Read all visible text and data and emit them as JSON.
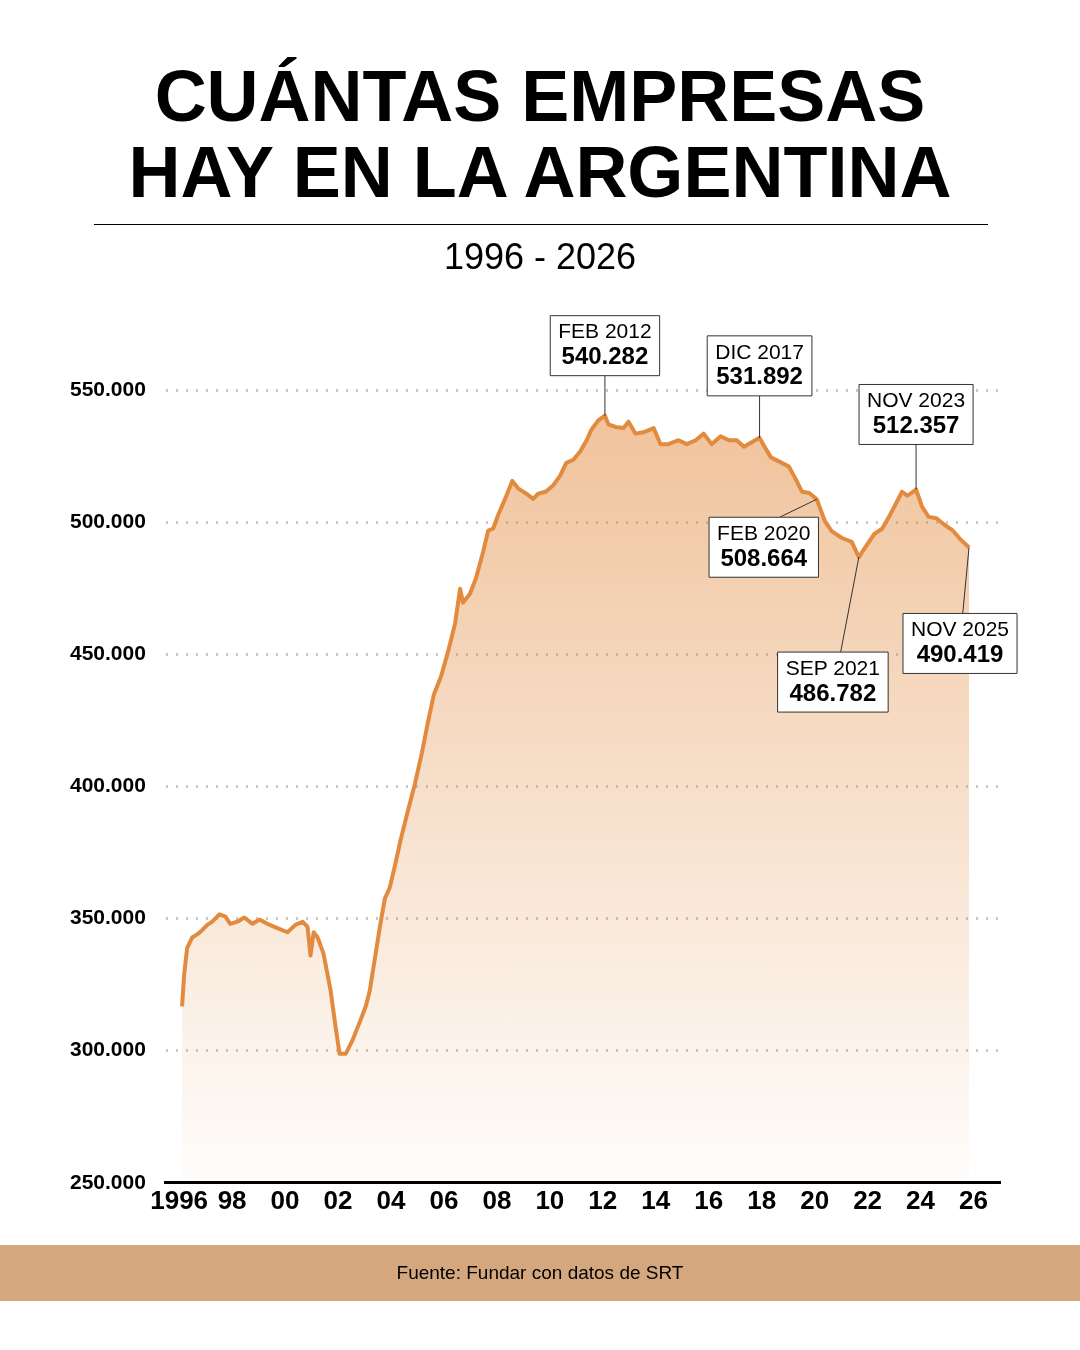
{
  "chart_data": {
    "type": "area",
    "title": "CUÁNTAS EMPRESAS HAY EN LA ARGENTINA",
    "subtitle": "1996 - 2026",
    "x": [
      1996.11,
      1996.19,
      1996.3,
      1996.49,
      1996.68,
      1996.87,
      1997.06,
      1997.25,
      1997.52,
      1997.74,
      1997.93,
      1998.2,
      1998.46,
      1998.77,
      1999.03,
      1999.33,
      1999.71,
      2000.09,
      2000.39,
      2000.66,
      2000.85,
      2000.96,
      2001.08,
      2001.23,
      2001.45,
      2001.72,
      2001.91,
      2002.06,
      2002.29,
      2002.55,
      2002.82,
      2003.05,
      2003.2,
      2003.39,
      2003.58,
      2003.77,
      2003.95,
      2004.14,
      2004.37,
      2004.64,
      2004.9,
      2005.17,
      2005.39,
      2005.62,
      2005.89,
      2006.15,
      2006.42,
      2006.61,
      2006.72,
      2006.98,
      2007.21,
      2007.48,
      2007.67,
      2007.86,
      2008.05,
      2008.31,
      2008.58,
      2008.8,
      2009.11,
      2009.37,
      2009.56,
      2009.86,
      2010.13,
      2010.39,
      2010.62,
      2010.89,
      2011.15,
      2011.38,
      2011.57,
      2011.83,
      2012.08,
      2012.21,
      2012.48,
      2012.78,
      2012.97,
      2013.23,
      2013.54,
      2013.92,
      2014.18,
      2014.48,
      2014.86,
      2015.17,
      2015.51,
      2015.81,
      2016.11,
      2016.45,
      2016.76,
      2017.06,
      2017.33,
      2017.59,
      2017.92,
      2018.08,
      2018.35,
      2018.65,
      2019.03,
      2019.3,
      2019.52,
      2019.8,
      2020.08,
      2020.38,
      2020.65,
      2021.03,
      2021.4,
      2021.67,
      2021.98,
      2022.25,
      2022.55,
      2022.86,
      2023.12,
      2023.3,
      2023.5,
      2023.65,
      2023.83,
      2024.05,
      2024.3,
      2024.6,
      2024.9,
      2025.2,
      2025.5,
      2025.83
    ],
    "series": [
      {
        "color": "#e28b3f",
        "values": [
          316800,
          328800,
          338800,
          342800,
          344000,
          345600,
          347600,
          348800,
          351600,
          350800,
          348000,
          348800,
          350400,
          348000,
          349600,
          348000,
          346400,
          344800,
          347600,
          348800,
          346800,
          336000,
          344800,
          342800,
          336800,
          322800,
          308800,
          298800,
          298800,
          304000,
          310800,
          316800,
          322800,
          334800,
          346800,
          357600,
          361600,
          369600,
          380000,
          390800,
          400800,
          412800,
          424000,
          434800,
          441600,
          450800,
          461600,
          474800,
          469600,
          472800,
          478800,
          488800,
          496800,
          497600,
          502800,
          508800,
          515600,
          512800,
          510800,
          508800,
          510800,
          511600,
          514000,
          517600,
          522400,
          523600,
          526800,
          530800,
          535000,
          538500,
          540282,
          537000,
          536000,
          535600,
          538000,
          533500,
          534000,
          535600,
          529500,
          529500,
          531000,
          529500,
          531000,
          533500,
          529500,
          532500,
          531000,
          531000,
          528500,
          530000,
          531892,
          529000,
          524500,
          523000,
          521000,
          516000,
          511500,
          511000,
          508664,
          500500,
          496500,
          494000,
          492500,
          486782,
          491500,
          495500,
          497500,
          503000,
          508000,
          511500,
          510000,
          511000,
          512357,
          506000,
          502000,
          501500,
          499000,
          497000,
          493500,
          490419
        ]
      }
    ],
    "xlim": [
      1995.5,
      2027
    ],
    "ylim": [
      250000,
      550000
    ],
    "xticks": [
      {
        "value": 1996,
        "label": "1996"
      },
      {
        "value": 1998,
        "label": "98"
      },
      {
        "value": 2000,
        "label": "00"
      },
      {
        "value": 2002,
        "label": "02"
      },
      {
        "value": 2004,
        "label": "04"
      },
      {
        "value": 2006,
        "label": "06"
      },
      {
        "value": 2008,
        "label": "08"
      },
      {
        "value": 2010,
        "label": "10"
      },
      {
        "value": 2012,
        "label": "12"
      },
      {
        "value": 2014,
        "label": "14"
      },
      {
        "value": 2016,
        "label": "16"
      },
      {
        "value": 2018,
        "label": "18"
      },
      {
        "value": 2020,
        "label": "20"
      },
      {
        "value": 2022,
        "label": "22"
      },
      {
        "value": 2024,
        "label": "24"
      },
      {
        "value": 2026,
        "label": "26"
      }
    ],
    "yticks": [
      {
        "value": 250000,
        "label": "250.000"
      },
      {
        "value": 300000,
        "label": "300.000"
      },
      {
        "value": 350000,
        "label": "350.000"
      },
      {
        "value": 400000,
        "label": "400.000"
      },
      {
        "value": 450000,
        "label": "450.000"
      },
      {
        "value": 500000,
        "label": "500.000"
      },
      {
        "value": 550000,
        "label": "550.000"
      }
    ],
    "grid": "y",
    "annotations": [
      {
        "text": "FEB 2012\n540.282",
        "x": 2012.08,
        "y": 540282
      },
      {
        "text": "DIC 2017\n531.892",
        "x": 2017.92,
        "y": 531892
      },
      {
        "text": "NOV 2023\n512.357",
        "x": 2023.83,
        "y": 512357
      },
      {
        "text": "FEB 2020\n508.664",
        "x": 2020.08,
        "y": 508664
      },
      {
        "text": "SEP 2021\n486.782",
        "x": 2021.67,
        "y": 486782
      },
      {
        "text": "NOV 2025\n490.419",
        "x": 2025.83,
        "y": 490419
      },
      "Fuente: Fundar con datos de SRT"
    ]
  }
}
